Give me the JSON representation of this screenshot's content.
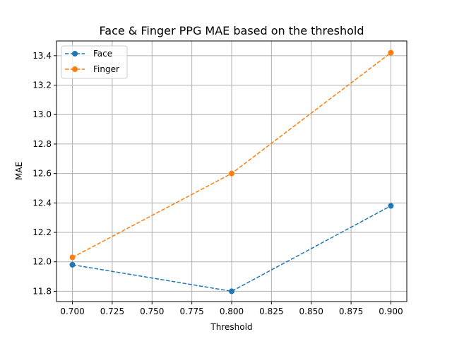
{
  "chart_data": {
    "type": "line",
    "title": "Face & Finger PPG MAE based on the threshold",
    "xlabel": "Threshold",
    "ylabel": "MAE",
    "x": [
      0.7,
      0.8,
      0.9
    ],
    "xlim": [
      0.69,
      0.91
    ],
    "ylim": [
      11.73,
      13.5
    ],
    "xticks": [
      "0.700",
      "0.725",
      "0.750",
      "0.775",
      "0.800",
      "0.825",
      "0.850",
      "0.875",
      "0.900"
    ],
    "yticks": [
      "11.8",
      "12.0",
      "12.2",
      "12.4",
      "12.6",
      "12.8",
      "13.0",
      "13.2",
      "13.4"
    ],
    "grid": true,
    "legend_position": "top-left",
    "series": [
      {
        "name": "Face",
        "values": [
          11.98,
          11.8,
          12.38
        ],
        "color": "#1f77b4",
        "line_style": "dashed",
        "marker": "circle"
      },
      {
        "name": "Finger",
        "values": [
          12.03,
          12.6,
          13.42
        ],
        "color": "#ff7f0e",
        "line_style": "dashed",
        "marker": "circle"
      }
    ]
  }
}
